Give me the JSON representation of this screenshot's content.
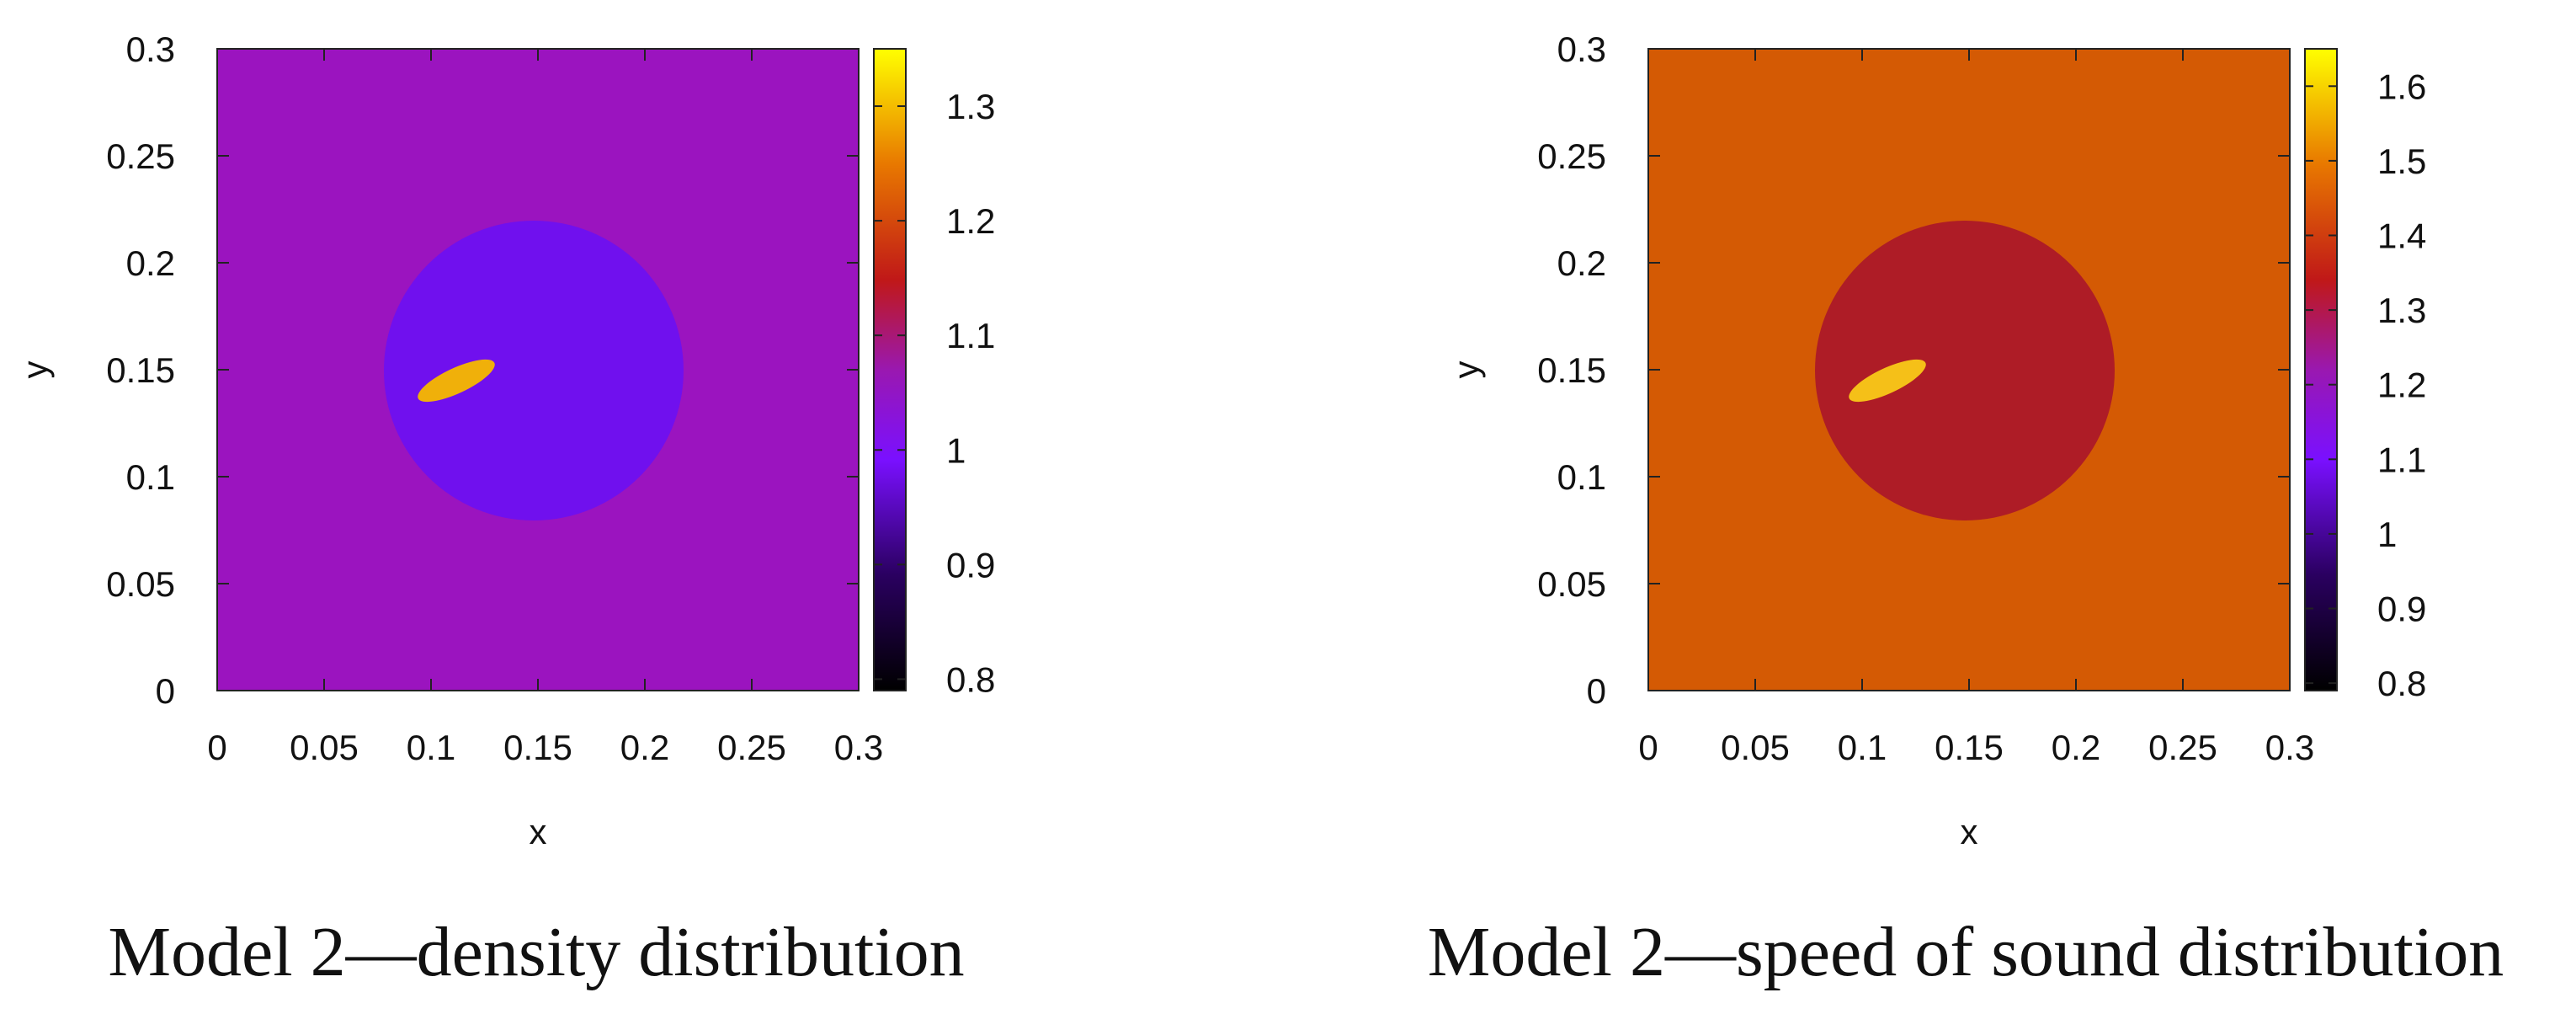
{
  "chart_data": [
    {
      "type": "heatmap",
      "caption": "Model 2—density distribution",
      "xlabel": "x",
      "ylabel": "y",
      "xlim": [
        0,
        0.3
      ],
      "ylim": [
        0,
        0.3
      ],
      "xticks": [
        "0",
        "0.05",
        "0.1",
        "0.15",
        "0.2",
        "0.25",
        "0.3"
      ],
      "yticks": [
        "0",
        "0.05",
        "0.1",
        "0.15",
        "0.2",
        "0.25",
        "0.3"
      ],
      "colorbar": {
        "range": [
          0.79,
          1.35
        ],
        "ticks": [
          "0.8",
          "0.9",
          "1",
          "1.1",
          "1.2",
          "1.3"
        ]
      },
      "regions": [
        {
          "name": "background",
          "shape": "rect",
          "x": [
            0,
            0.3
          ],
          "y": [
            0,
            0.3
          ],
          "value": 1.0
        },
        {
          "name": "circle",
          "shape": "circle",
          "center": [
            0.148,
            0.148
          ],
          "radius": 0.07,
          "value": 0.95
        },
        {
          "name": "inclusion",
          "shape": "ellipse",
          "center": [
            0.112,
            0.145
          ],
          "semi_axes": [
            0.02,
            0.006
          ],
          "angle_deg": 25,
          "value": 1.25
        }
      ],
      "colors": {
        "background": "#9b14bf",
        "circle": "#7010ee",
        "inclusion": "#f0b00a"
      }
    },
    {
      "type": "heatmap",
      "caption": "Model 2—speed of sound distribution",
      "xlabel": "x",
      "ylabel": "y",
      "xlim": [
        0,
        0.3
      ],
      "ylim": [
        0,
        0.3
      ],
      "xticks": [
        "0",
        "0.05",
        "0.1",
        "0.15",
        "0.2",
        "0.25",
        "0.3"
      ],
      "yticks": [
        "0",
        "0.05",
        "0.1",
        "0.15",
        "0.2",
        "0.25",
        "0.3"
      ],
      "colorbar": {
        "range": [
          0.79,
          1.65
        ],
        "ticks": [
          "0.8",
          "0.9",
          "1",
          "1.1",
          "1.2",
          "1.3",
          "1.4",
          "1.5",
          "1.6"
        ]
      },
      "regions": [
        {
          "name": "background",
          "shape": "rect",
          "x": [
            0,
            0.3
          ],
          "y": [
            0,
            0.3
          ],
          "value": 1.4
        },
        {
          "name": "circle",
          "shape": "circle",
          "center": [
            0.148,
            0.148
          ],
          "radius": 0.07,
          "value": 1.25
        },
        {
          "name": "inclusion",
          "shape": "ellipse",
          "center": [
            0.112,
            0.145
          ],
          "semi_axes": [
            0.02,
            0.006
          ],
          "angle_deg": 25,
          "value": 1.55
        }
      ],
      "colors": {
        "background": "#d45a04",
        "circle": "#ae1c26",
        "inclusion": "#f5c018"
      }
    }
  ]
}
